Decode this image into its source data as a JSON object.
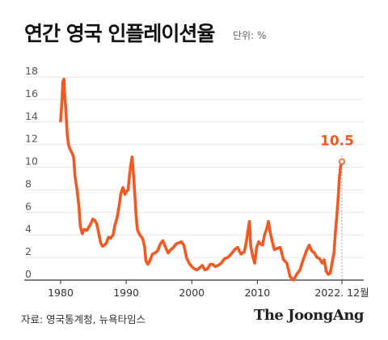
{
  "title": "연간 영국 인플레이션율",
  "unit_label": "단위: %",
  "source": "자료: 영국통계청, 뉴욕타임스",
  "brand": "The JoongAng",
  "colors": {
    "line": "#f15a24",
    "grid": "#e6e6e6",
    "axis": "#333333",
    "text": "#555555"
  },
  "chart_data": {
    "type": "line",
    "title": "연간 영국 인플레이션율",
    "ylabel": "단위: %",
    "xlim": [
      1980,
      2023.5
    ],
    "ylim": [
      0,
      18
    ],
    "grid": true,
    "y_ticks": [
      0,
      2,
      4,
      6,
      8,
      10,
      12,
      14,
      16,
      18
    ],
    "x_ticks": [
      {
        "value": 1980,
        "label": "1980"
      },
      {
        "value": 1990,
        "label": "1990"
      },
      {
        "value": 2000,
        "label": "2000"
      },
      {
        "value": 2010,
        "label": "2010"
      },
      {
        "value": 2022.9,
        "label": "2022. 12월"
      }
    ],
    "annotation": {
      "x": 2022.9,
      "y": 10.5,
      "label": "10.5"
    },
    "series": [
      {
        "name": "",
        "x": [
          1980.0,
          1980.2,
          1980.35,
          1980.5,
          1980.6,
          1980.8,
          1981.0,
          1981.2,
          1981.5,
          1981.8,
          1982.0,
          1982.2,
          1982.5,
          1982.8,
          1983.0,
          1983.3,
          1983.6,
          1984.0,
          1984.3,
          1984.6,
          1984.9,
          1985.2,
          1985.5,
          1985.8,
          1986.1,
          1986.4,
          1986.7,
          1987.0,
          1987.3,
          1987.6,
          1988.0,
          1988.3,
          1988.6,
          1988.9,
          1989.2,
          1989.5,
          1989.8,
          1990.1,
          1990.3,
          1990.5,
          1990.7,
          1990.9,
          1991.1,
          1991.3,
          1991.5,
          1991.7,
          1991.9,
          1992.2,
          1992.5,
          1992.8,
          1993.0,
          1993.3,
          1993.6,
          1994.0,
          1994.4,
          1994.8,
          1995.2,
          1995.6,
          1996.0,
          1996.4,
          1996.8,
          1997.2,
          1997.6,
          1998.0,
          1998.4,
          1998.8,
          1999.2,
          1999.6,
          2000.0,
          2000.4,
          2000.8,
          2001.2,
          2001.6,
          2002.0,
          2002.4,
          2002.8,
          2003.2,
          2003.6,
          2004.0,
          2004.5,
          2005.0,
          2005.5,
          2006.0,
          2006.5,
          2007.0,
          2007.5,
          2008.0,
          2008.3,
          2008.6,
          2008.8,
          2009.0,
          2009.3,
          2009.6,
          2009.9,
          2010.2,
          2010.5,
          2010.8,
          2011.1,
          2011.4,
          2011.7,
          2011.9,
          2012.2,
          2012.6,
          2013.0,
          2013.5,
          2014.0,
          2014.5,
          2015.0,
          2015.5,
          2016.0,
          2016.5,
          2017.0,
          2017.5,
          2017.9,
          2018.3,
          2018.7,
          2019.1,
          2019.5,
          2019.9,
          2020.2,
          2020.5,
          2020.8,
          2021.1,
          2021.4,
          2021.7,
          2021.9,
          2022.1,
          2022.3,
          2022.5,
          2022.7,
          2022.9
        ],
        "values": [
          14.1,
          15.8,
          17.6,
          17.8,
          16.6,
          15.0,
          13.0,
          12.0,
          11.5,
          11.2,
          10.8,
          9.2,
          8.0,
          6.5,
          4.8,
          4.1,
          4.5,
          4.4,
          4.7,
          5.0,
          5.4,
          5.3,
          5.0,
          4.2,
          3.3,
          3.0,
          3.1,
          3.3,
          3.8,
          3.7,
          4.0,
          4.9,
          5.5,
          6.5,
          7.7,
          8.2,
          7.6,
          7.9,
          8.0,
          9.3,
          10.2,
          10.9,
          9.5,
          7.7,
          5.8,
          4.5,
          4.2,
          3.9,
          3.7,
          3.0,
          1.7,
          1.4,
          1.7,
          2.3,
          2.4,
          2.6,
          3.2,
          3.5,
          2.9,
          2.4,
          2.7,
          2.9,
          3.2,
          3.3,
          3.4,
          3.1,
          2.0,
          1.5,
          1.2,
          1.0,
          0.9,
          1.1,
          1.3,
          0.9,
          1.0,
          1.4,
          1.4,
          1.2,
          1.3,
          1.5,
          1.9,
          2.0,
          2.3,
          2.7,
          2.9,
          2.3,
          2.5,
          3.3,
          4.5,
          5.2,
          3.0,
          2.1,
          1.5,
          2.9,
          3.4,
          3.2,
          3.1,
          4.0,
          4.5,
          5.2,
          4.4,
          3.6,
          2.7,
          2.8,
          2.9,
          1.8,
          1.5,
          0.3,
          0.0,
          0.5,
          0.9,
          1.8,
          2.6,
          3.1,
          2.6,
          2.4,
          2.0,
          1.9,
          1.5,
          1.8,
          0.8,
          0.5,
          0.6,
          1.5,
          2.5,
          4.2,
          5.5,
          7.0,
          9.0,
          10.1,
          10.5
        ]
      }
    ]
  }
}
